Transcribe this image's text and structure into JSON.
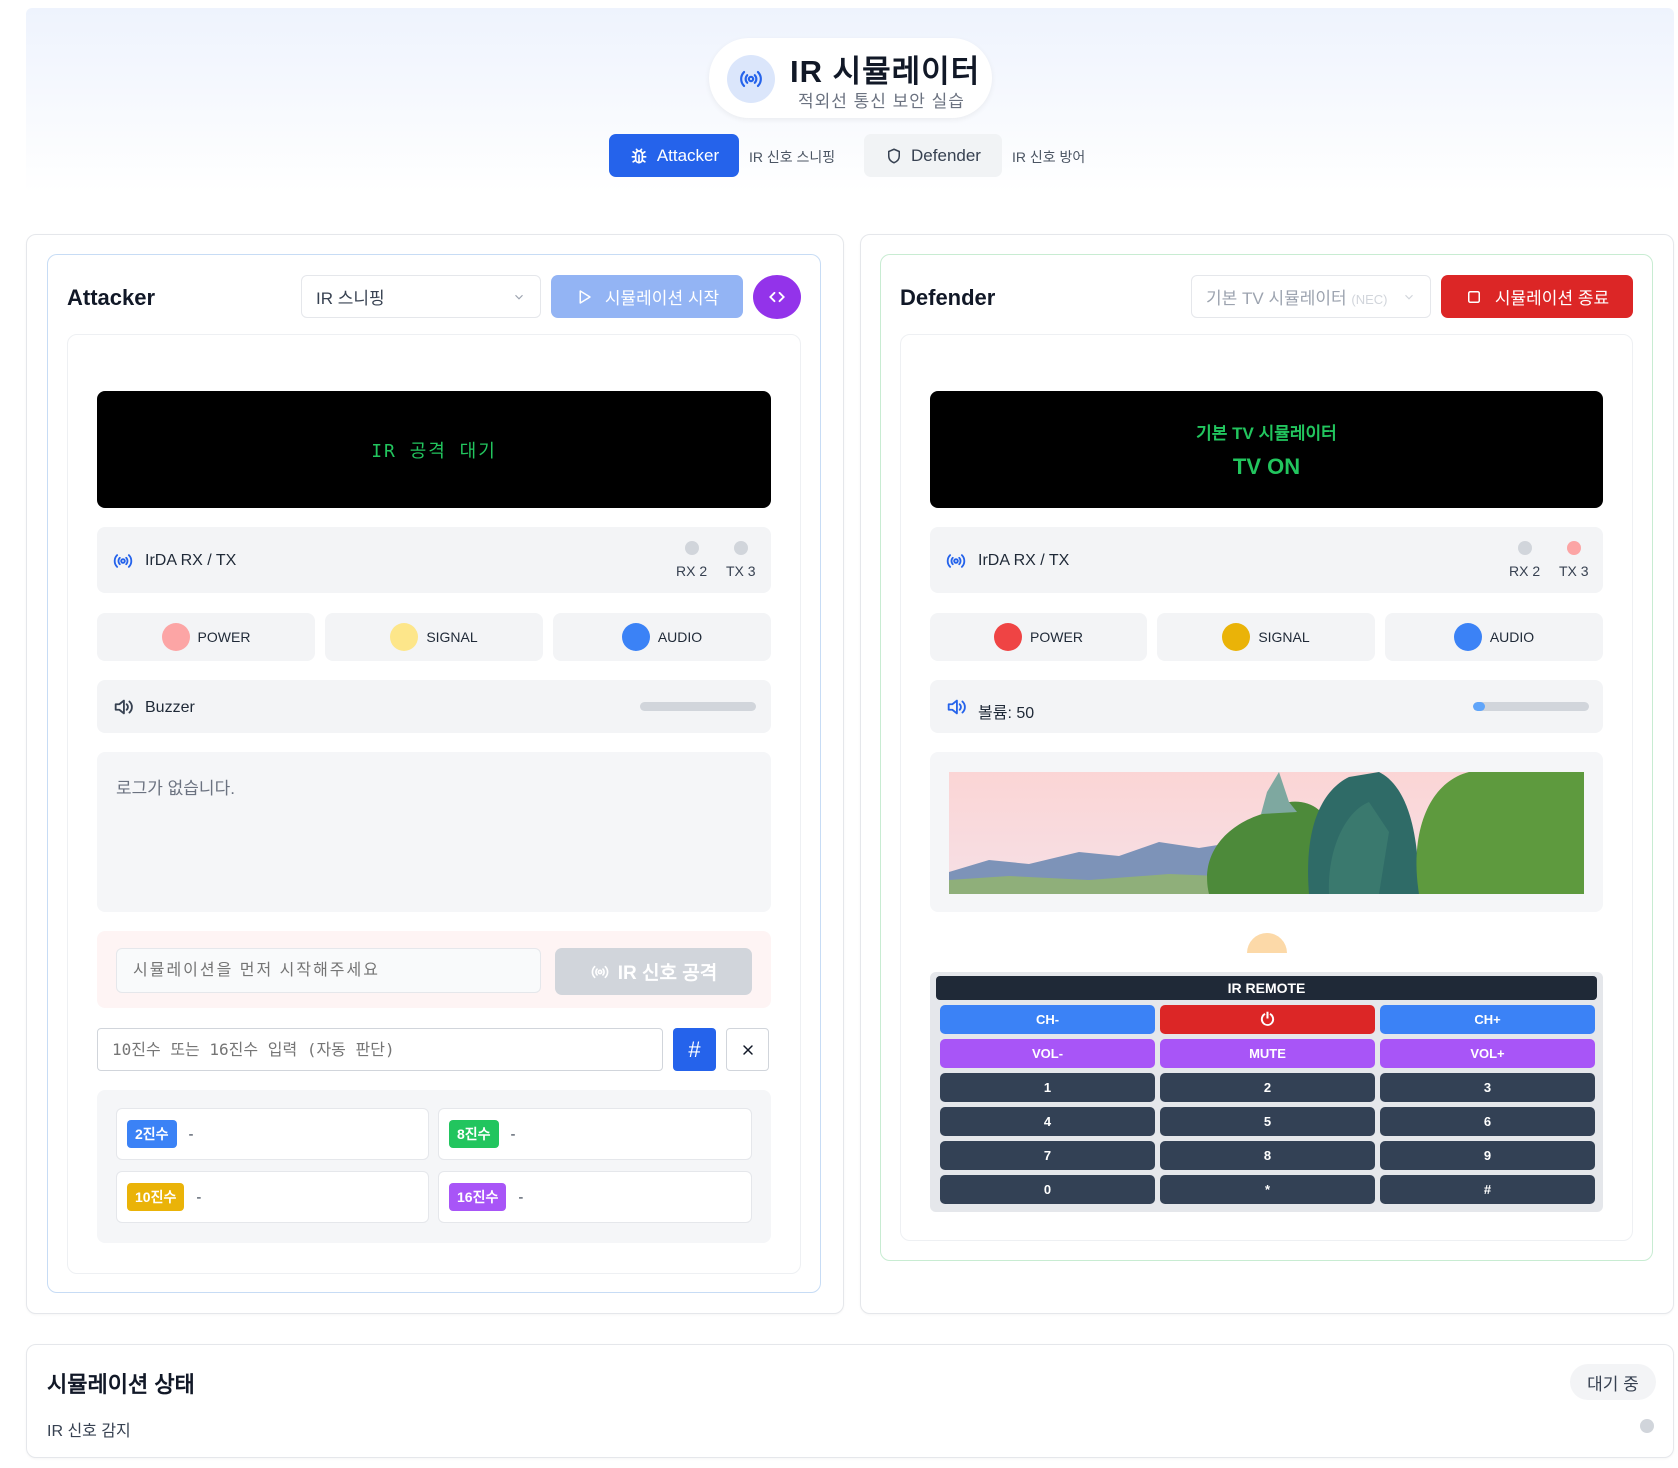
{
  "header": {
    "title": "IR 시뮬레이터",
    "subtitle": "적외선 통신 보안 실습",
    "icon": "radio-signal-icon",
    "tabs": [
      {
        "label": "Attacker",
        "caption": "IR 신호 스니핑",
        "icon": "bug-icon",
        "active": true
      },
      {
        "label": "Defender",
        "caption": "IR 신호 방어",
        "icon": "shield-icon",
        "active": false
      }
    ]
  },
  "attacker": {
    "title": "Attacker",
    "mode_select": "IR 스니핑",
    "start_button": "시뮬레이션 시작",
    "display_text": "IR 공격 대기",
    "irda_label": "IrDA RX / TX",
    "rx_label": "RX 2",
    "tx_label": "TX 3",
    "leds": [
      {
        "label": "POWER",
        "color": "#fca5a5"
      },
      {
        "label": "SIGNAL",
        "color": "#fde68a"
      },
      {
        "label": "AUDIO",
        "color": "#3b82f6"
      }
    ],
    "buzzer_label": "Buzzer",
    "buzzer_level": 0,
    "log_empty": "로그가 없습니다.",
    "signal_placeholder": "시뮬레이션을 먼저 시작해주세요",
    "attack_button": "IR 신호 공격",
    "number_placeholder": "10진수 또는 16진수 입력 (자동 판단)",
    "converter": [
      {
        "badge": "2진수",
        "value": "-",
        "color": "#3b82f6"
      },
      {
        "badge": "8진수",
        "value": "-",
        "color": "#22c55e"
      },
      {
        "badge": "10진수",
        "value": "-",
        "color": "#eab308"
      },
      {
        "badge": "16진수",
        "value": "-",
        "color": "#a855f7"
      }
    ]
  },
  "defender": {
    "title": "Defender",
    "device_select": "기본 TV 시뮬레이터",
    "device_protocol": "(NEC)",
    "stop_button": "시뮬레이션 종료",
    "display_title": "기본 TV 시뮬레이터",
    "display_status": "TV ON",
    "irda_label": "IrDA RX / TX",
    "rx_label": "RX 2",
    "tx_label": "TX 3",
    "leds": [
      {
        "label": "POWER",
        "color": "#ef4444"
      },
      {
        "label": "SIGNAL",
        "color": "#eab308"
      },
      {
        "label": "AUDIO",
        "color": "#3b82f6"
      }
    ],
    "volume_label": "볼륨: 50",
    "volume_level": 0.1,
    "remote": {
      "title": "IR REMOTE",
      "rows": [
        [
          {
            "label": "CH-",
            "color": "#3b82f6"
          },
          {
            "label": "⏻",
            "color": "#dc2626"
          },
          {
            "label": "CH+",
            "color": "#3b82f6"
          }
        ],
        [
          {
            "label": "VOL-",
            "color": "#a855f7"
          },
          {
            "label": "MUTE",
            "color": "#a855f7"
          },
          {
            "label": "VOL+",
            "color": "#a855f7"
          }
        ],
        [
          {
            "label": "1",
            "color": "#334155"
          },
          {
            "label": "2",
            "color": "#334155"
          },
          {
            "label": "3",
            "color": "#334155"
          }
        ],
        [
          {
            "label": "4",
            "color": "#334155"
          },
          {
            "label": "5",
            "color": "#334155"
          },
          {
            "label": "6",
            "color": "#334155"
          }
        ],
        [
          {
            "label": "7",
            "color": "#334155"
          },
          {
            "label": "8",
            "color": "#334155"
          },
          {
            "label": "9",
            "color": "#334155"
          }
        ],
        [
          {
            "label": "0",
            "color": "#334155"
          },
          {
            "label": "*",
            "color": "#334155"
          },
          {
            "label": "#",
            "color": "#334155"
          }
        ]
      ]
    }
  },
  "status": {
    "title": "시뮬레이션 상태",
    "badge": "대기 중",
    "item": "IR 신호 감지"
  },
  "colors": {
    "primary": "#2563eb",
    "danger": "#dc2626",
    "purple": "#9333ea",
    "terminal_green": "#22c55e"
  }
}
